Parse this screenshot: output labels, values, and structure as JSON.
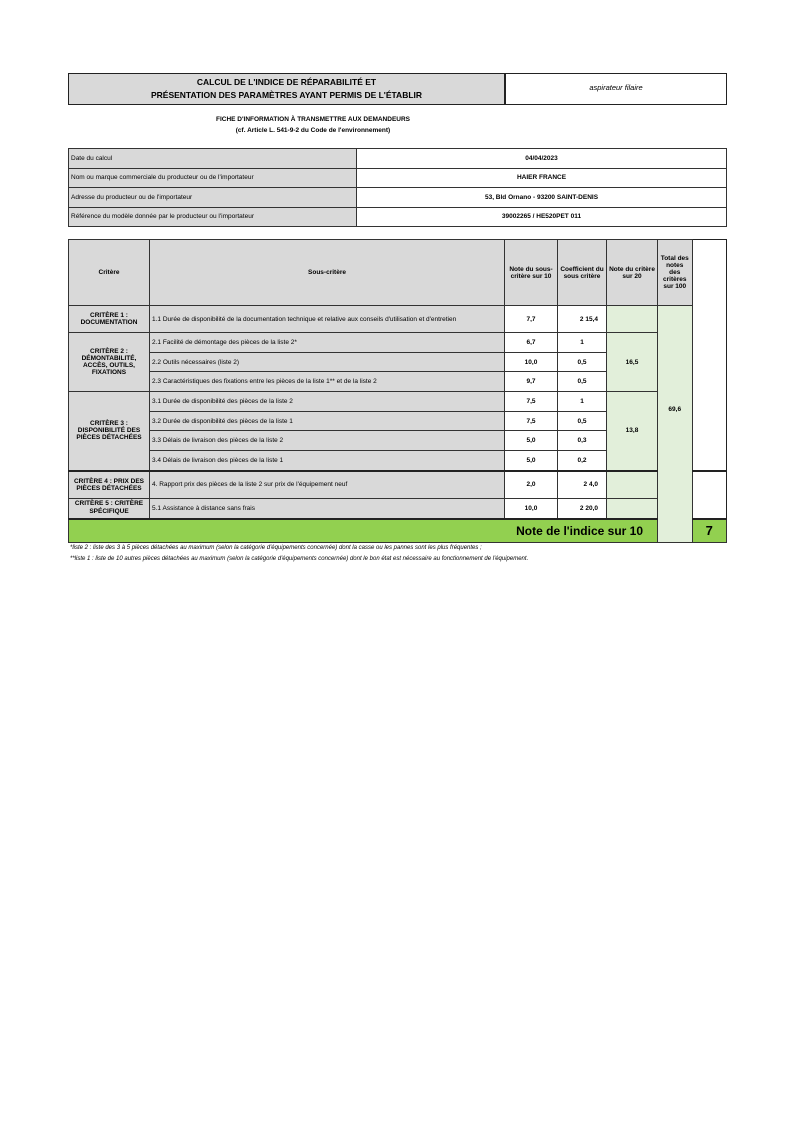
{
  "header": {
    "title_line1": "CALCUL DE L'INDICE DE RÉPARABILITÉ ET",
    "title_line2": "PRÉSENTATION DES PARAMÈTRES AYANT PERMIS DE L'ÉTABLIR",
    "product_type": "aspirateur filaire"
  },
  "subtitle": {
    "line1": "FICHE D'INFORMATION À TRANSMETTRE AUX DEMANDEURS",
    "line2": "(cf. Article L. 541-9-2 du Code de l'environnement)"
  },
  "info": [
    {
      "label": "Date du calcul",
      "value": "04/04/2023"
    },
    {
      "label": "Nom ou marque commerciale du producteur ou de l'importateur",
      "value": "HAIER FRANCE"
    },
    {
      "label": "Adresse du producteur ou de l'importateur",
      "value": "53, Bld Ornano - 93200 SAINT-DENIS"
    },
    {
      "label": "Référence du modèle donnée par le producteur ou l'importateur",
      "value": "39002265 / HE520PET 011"
    }
  ],
  "table": {
    "headers": [
      "Critère",
      "Sous-critère",
      "Note du sous-critère sur 10",
      "Coefficient du sous critère",
      "Note du critère sur 20",
      "Total des notes des critères sur 100"
    ],
    "criteria": [
      {
        "name": "CRITÈRE 1 : DOCUMENTATION",
        "score20": "",
        "rows": [
          {
            "sub": "1.1 Durée de disponibilité de la documentation technique et relative aux conseils d'utilisation et d'entretien",
            "note": "7,7",
            "coef": "2 15,4"
          }
        ]
      },
      {
        "name": "CRITÈRE 2 : DÉMONTABILITÉ, ACCÈS, OUTILS, FIXATIONS",
        "score20": "16,5",
        "rows": [
          {
            "sub": "2.1 Facilité de démontage des pièces de la liste 2*",
            "note": "6,7",
            "coef": "1"
          },
          {
            "sub": "2.2 Outils nécessaires (liste 2)",
            "note": "10,0",
            "coef": "0,5"
          },
          {
            "sub": "2.3 Caractéristiques des fixations entre les pièces de la liste 1** et de la liste 2",
            "note": "9,7",
            "coef": "0,5"
          }
        ]
      },
      {
        "name": "CRITÈRE 3 : DISPONIBILITÉ DES PIÈCES DÉTACHÉES",
        "score20": "13,8",
        "rows": [
          {
            "sub": "3.1 Durée de disponibilité des pièces de la liste 2",
            "note": "7,5",
            "coef": "1"
          },
          {
            "sub": "3.2 Durée de disponibilité des pièces de la liste 1",
            "note": "7,5",
            "coef": "0,5"
          },
          {
            "sub": "3.3 Délais de livraison des pièces de la liste 2",
            "note": "5,0",
            "coef": "0,3"
          },
          {
            "sub": "3.4 Délais de livraison des pièces de la liste 1",
            "note": "5,0",
            "coef": "0,2"
          }
        ]
      },
      {
        "name": "CRITÈRE 4 : PRIX DES PIÈCES DÉTACHÉES",
        "score20": "",
        "rows": [
          {
            "sub": "4. Rapport prix des pièces de la liste 2 sur prix de l'équipement neuf",
            "note": "2,0",
            "coef": "2 4,0"
          }
        ]
      },
      {
        "name": "CRITÈRE 5 : CRITÈRE SPÉCIFIQUE",
        "score20": "",
        "rows": [
          {
            "sub": "5.1 Assistance à distance sans frais",
            "note": "10,0",
            "coef": "2 20,0"
          }
        ]
      }
    ],
    "total100": "69,6",
    "index_label": "Note de l'indice sur 10",
    "index_value": "7"
  },
  "footnotes": [
    "*liste 2 : liste des 3 à 5 pièces détachées au maximum (selon la catégorie d'équipements concernée) dont la casse ou les pannes sont les plus fréquentes ;",
    "**liste 1 : liste de 10 autres pièces détachées au maximum (selon la catégorie d'équipements concernée) dont le bon état est nécessaire au fonctionnement de l'équipement."
  ],
  "colors": {
    "grey": "#d9d9d9",
    "light_green": "#e2efda",
    "green": "#92d050"
  }
}
